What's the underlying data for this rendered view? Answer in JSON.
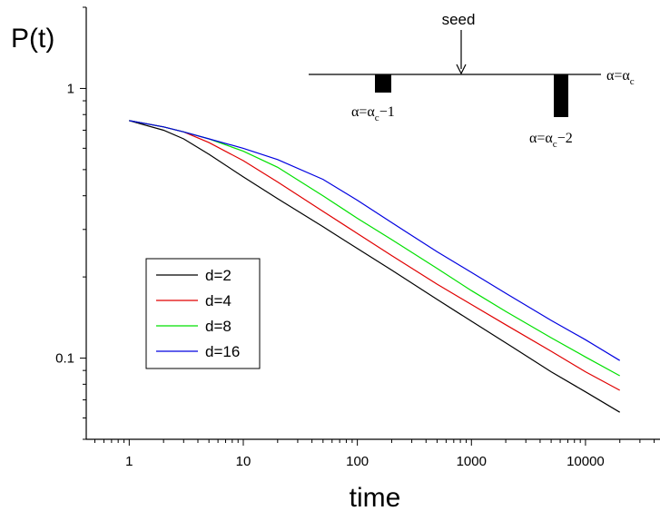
{
  "chart_data": {
    "type": "line",
    "title": "",
    "xlabel": "time",
    "ylabel": "P(t)",
    "x_scale": "log",
    "y_scale": "log",
    "xlim": [
      0.42,
      45000
    ],
    "ylim": [
      0.05,
      2.0
    ],
    "grid": false,
    "legend_position": "middle-left",
    "x_tick_labels": [
      "1",
      "10",
      "100",
      "1000",
      "10000"
    ],
    "y_tick_labels": [
      "1",
      "0.1"
    ],
    "x_major_ticks": [
      1,
      10,
      100,
      1000,
      10000
    ],
    "y_major_ticks": [
      1,
      0.1
    ],
    "series": [
      {
        "name": "d=2",
        "color": "#000000",
        "x": [
          1,
          2,
          3,
          5,
          10,
          20,
          50,
          100,
          200,
          500,
          1000,
          2000,
          5000,
          10000,
          20000
        ],
        "y": [
          0.76,
          0.7,
          0.65,
          0.57,
          0.47,
          0.39,
          0.307,
          0.255,
          0.212,
          0.165,
          0.137,
          0.114,
          0.089,
          0.075,
          0.063
        ]
      },
      {
        "name": "d=4",
        "color": "#e00000",
        "x": [
          1,
          2,
          3,
          5,
          10,
          20,
          50,
          100,
          200,
          500,
          1000,
          2000,
          5000,
          10000,
          20000
        ],
        "y": [
          0.76,
          0.72,
          0.69,
          0.63,
          0.54,
          0.45,
          0.35,
          0.29,
          0.24,
          0.188,
          0.158,
          0.133,
          0.106,
          0.089,
          0.076
        ]
      },
      {
        "name": "d=8",
        "color": "#00e000",
        "x": [
          1,
          2,
          3,
          5,
          10,
          20,
          50,
          100,
          200,
          500,
          1000,
          2000,
          5000,
          10000,
          20000
        ],
        "y": [
          0.76,
          0.72,
          0.69,
          0.65,
          0.585,
          0.51,
          0.4,
          0.33,
          0.275,
          0.215,
          0.178,
          0.149,
          0.119,
          0.101,
          0.086
        ]
      },
      {
        "name": "d=16",
        "color": "#0000e0",
        "x": [
          1,
          2,
          3,
          5,
          10,
          20,
          50,
          100,
          200,
          500,
          1000,
          2000,
          5000,
          10000,
          20000
        ],
        "y": [
          0.76,
          0.72,
          0.69,
          0.65,
          0.6,
          0.545,
          0.46,
          0.385,
          0.318,
          0.248,
          0.208,
          0.174,
          0.138,
          0.117,
          0.098
        ]
      }
    ],
    "inset": {
      "seed_label": "seed",
      "level_label": "α=α",
      "level_sub": "c",
      "bar1_pre": "α=α",
      "bar1_sub": "c",
      "bar1_post": "−1",
      "bar2_pre": "α=α",
      "bar2_sub": "c",
      "bar2_post": "−2"
    }
  }
}
